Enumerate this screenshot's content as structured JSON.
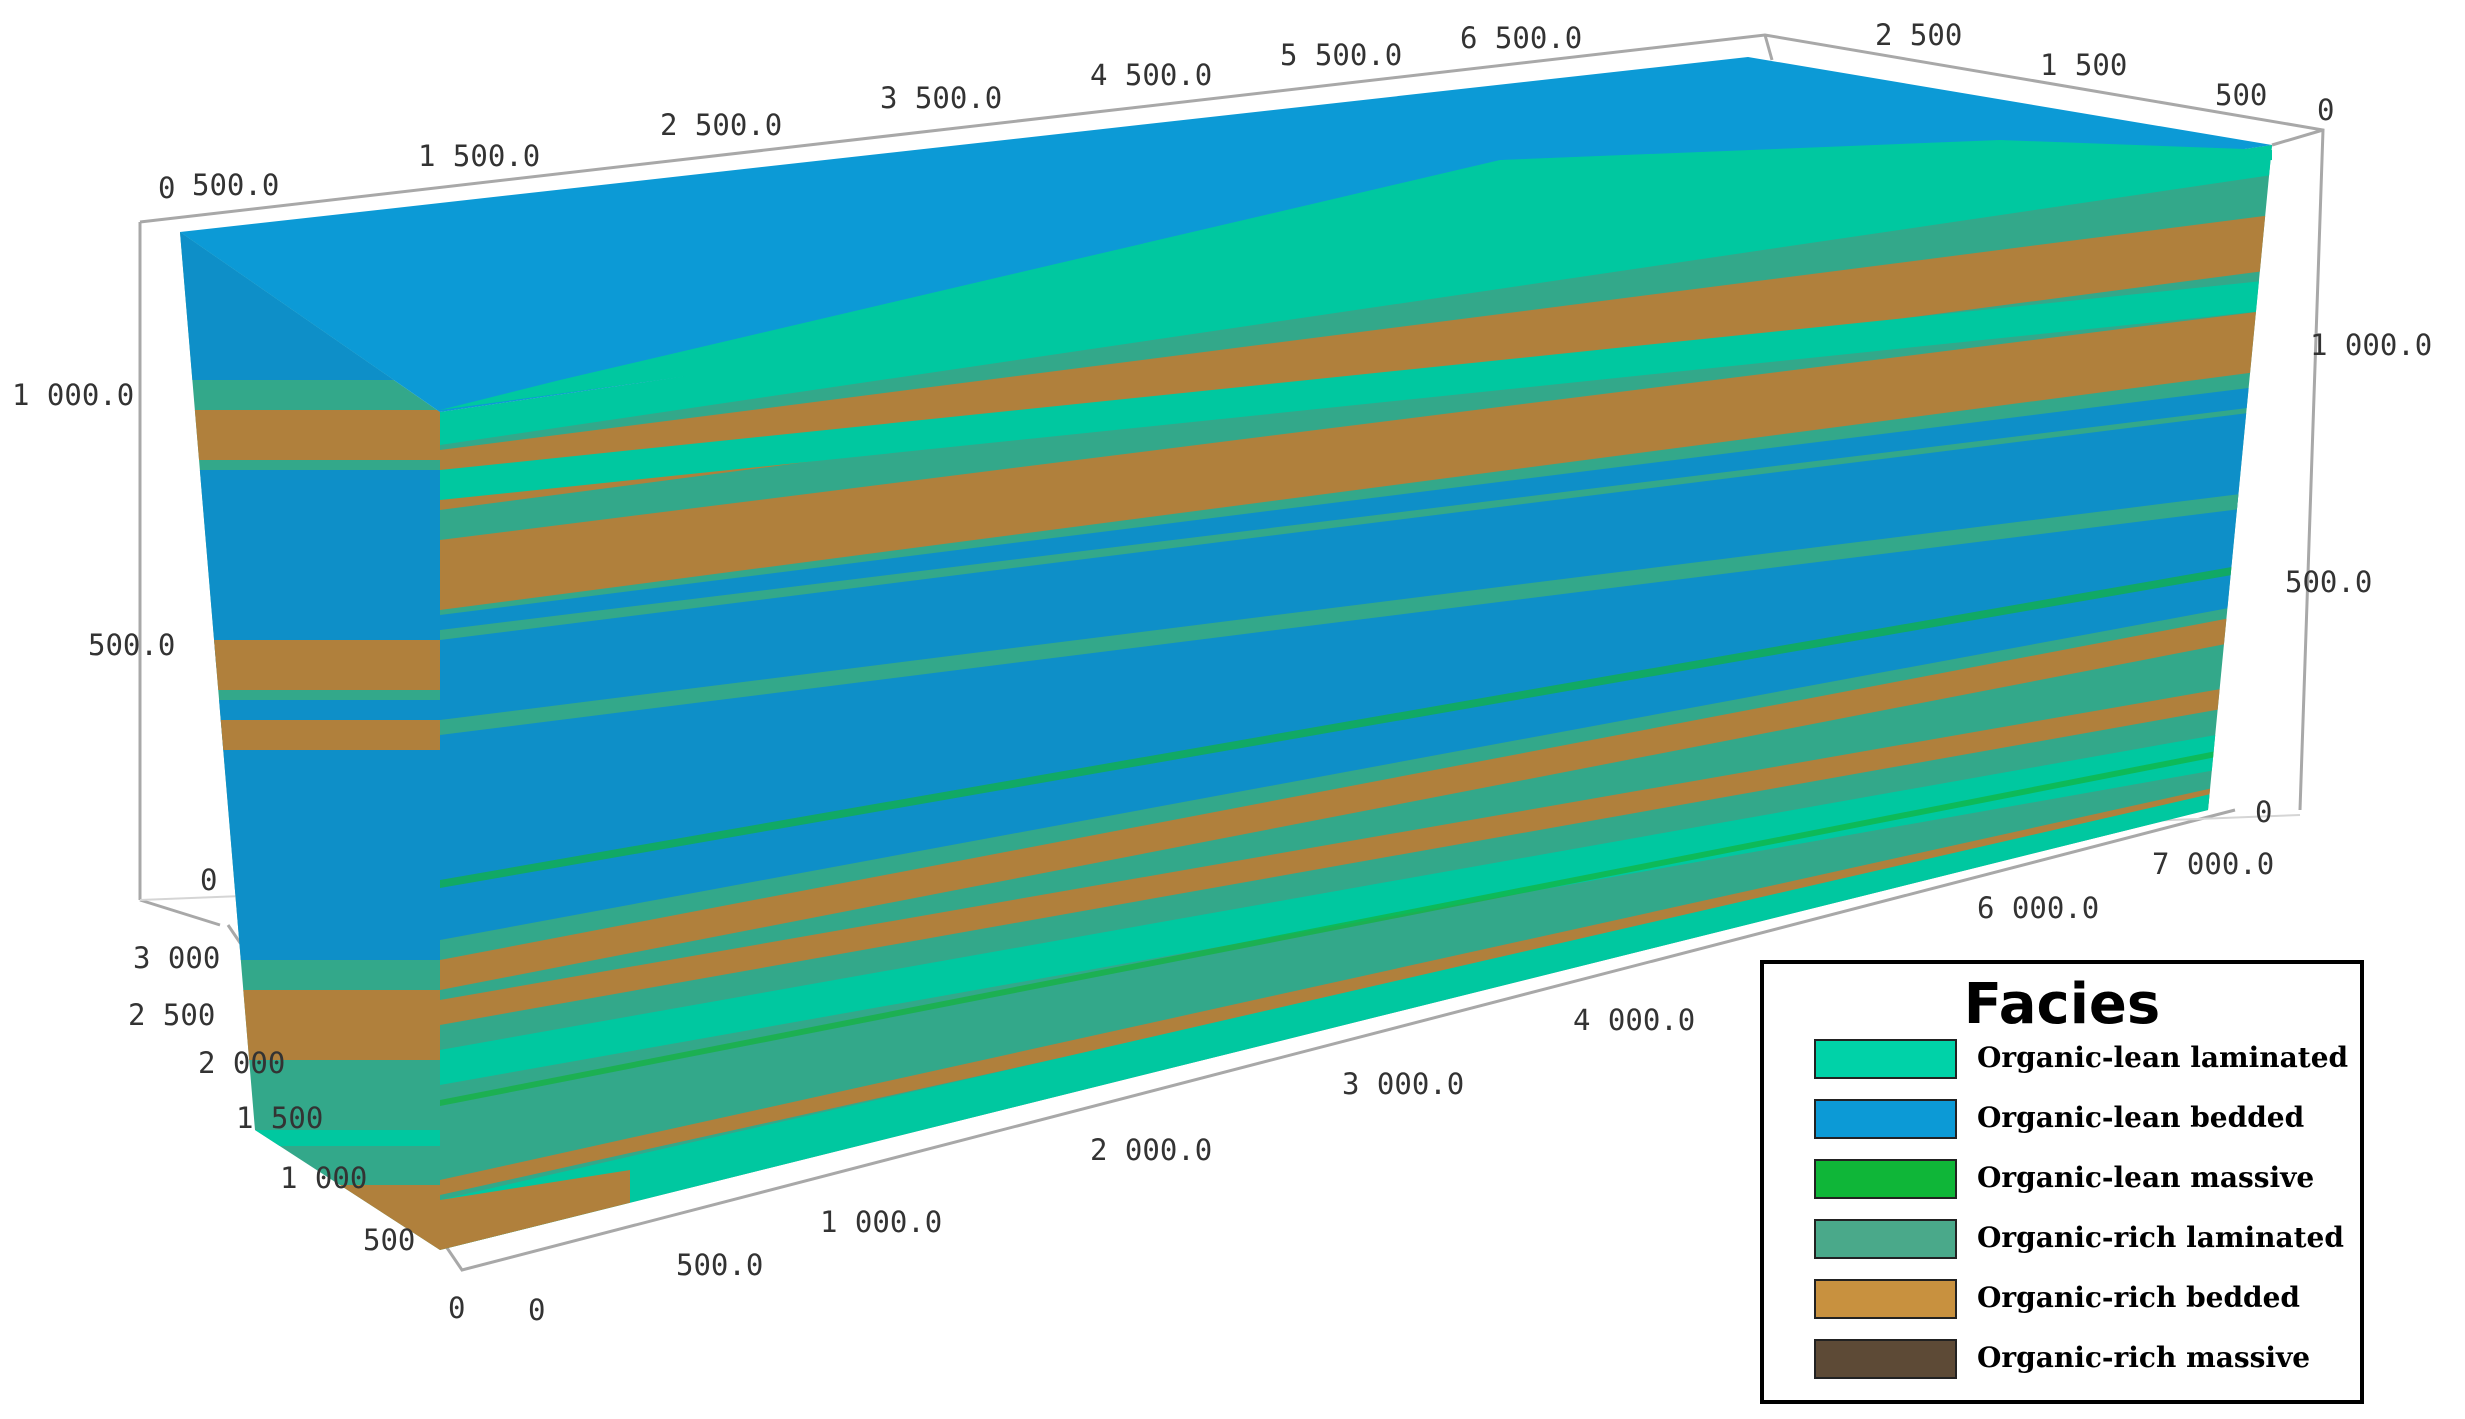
{
  "colors": {
    "lean_laminated": "#00c8a0",
    "lean_bedded": "#0e8fc8",
    "lean_massive": "#12b33a",
    "rich_laminated": "#33a88a",
    "rich_bedded": "#b0803c",
    "rich_massive": "#5a4632"
  },
  "axes": {
    "top_front": [
      "0",
      "500.0",
      "1 500.0",
      "2 500.0",
      "3 500.0",
      "4 500.0",
      "5 500.0",
      "6 500.0"
    ],
    "top_right": [
      "2 500",
      "1 500",
      "500",
      "0"
    ],
    "left_vertical": [
      "1 000.0",
      "500.0",
      "0"
    ],
    "right_vertical": [
      "1 000.0",
      "500.0",
      "0"
    ],
    "depth_axis": [
      "3 000",
      "2 500",
      "2 000",
      "1 500",
      "1 000",
      "500",
      "0"
    ],
    "bottom_length": [
      "0",
      "500.0",
      "1 000.0",
      "2 000.0",
      "3 000.0",
      "4 000.0",
      "6 000.0",
      "7 000.0"
    ]
  },
  "legend": {
    "title": "Facies",
    "items": [
      {
        "label": "Organic-lean laminated",
        "color": "#00d2a8"
      },
      {
        "label": "Organic-lean bedded",
        "color": "#0c9ad6"
      },
      {
        "label": "Organic-lean massive",
        "color": "#0fb638"
      },
      {
        "label": "Organic-rich laminated",
        "color": "#4aa98a"
      },
      {
        "label": "Organic-rich bedded",
        "color": "#c8913f"
      },
      {
        "label": "Organic-rich massive",
        "color": "#5d4a36"
      }
    ]
  }
}
